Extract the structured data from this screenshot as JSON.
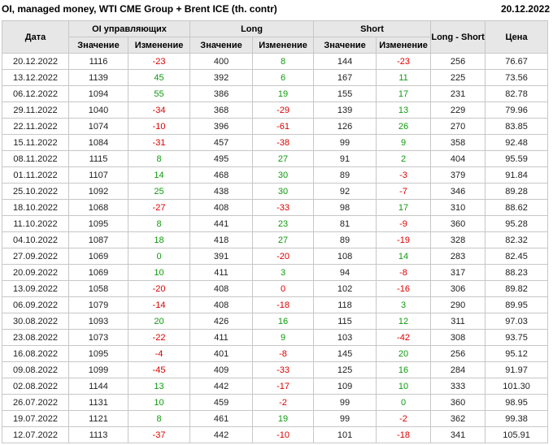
{
  "title": "OI, managed money, WTI CME Group + Brent ICE (th. contr)",
  "report_date": "20.12.2022",
  "colors": {
    "positive": "#0f9b0f",
    "negative": "#dd0000",
    "neutral": "#212121",
    "header_bg": "#e7e7e7"
  },
  "chart_data": {
    "type": "table",
    "title": "OI, managed money, WTI CME Group + Brent ICE (th. contr)",
    "header": {
      "col_date": "Дата",
      "group_oi": "OI управляющих",
      "group_long": "Long",
      "group_short": "Short",
      "col_long_short": "Long - Short",
      "col_price": "Цена",
      "sub_value": "Значение",
      "sub_change": "Изменение"
    },
    "rows": [
      {
        "date": "20.12.2022",
        "oi": "1116",
        "oi_chg": "-23",
        "long": "400",
        "long_chg": "8",
        "short": "144",
        "short_chg": "-23",
        "long_short": "256",
        "price": "76.67"
      },
      {
        "date": "13.12.2022",
        "oi": "1139",
        "oi_chg": "45",
        "long": "392",
        "long_chg": "6",
        "short": "167",
        "short_chg": "11",
        "long_short": "225",
        "price": "73.56"
      },
      {
        "date": "06.12.2022",
        "oi": "1094",
        "oi_chg": "55",
        "long": "386",
        "long_chg": "19",
        "short": "155",
        "short_chg": "17",
        "long_short": "231",
        "price": "82.78"
      },
      {
        "date": "29.11.2022",
        "oi": "1040",
        "oi_chg": "-34",
        "long": "368",
        "long_chg": "-29",
        "short": "139",
        "short_chg": "13",
        "long_short": "229",
        "price": "79.96"
      },
      {
        "date": "22.11.2022",
        "oi": "1074",
        "oi_chg": "-10",
        "long": "396",
        "long_chg": "-61",
        "short": "126",
        "short_chg": "26",
        "long_short": "270",
        "price": "83.85"
      },
      {
        "date": "15.11.2022",
        "oi": "1084",
        "oi_chg": "-31",
        "long": "457",
        "long_chg": "-38",
        "short": "99",
        "short_chg": "9",
        "long_short": "358",
        "price": "92.48"
      },
      {
        "date": "08.11.2022",
        "oi": "1115",
        "oi_chg": "8",
        "long": "495",
        "long_chg": "27",
        "short": "91",
        "short_chg": "2",
        "long_short": "404",
        "price": "95.59"
      },
      {
        "date": "01.11.2022",
        "oi": "1107",
        "oi_chg": "14",
        "long": "468",
        "long_chg": "30",
        "short": "89",
        "short_chg": "-3",
        "long_short": "379",
        "price": "91.84"
      },
      {
        "date": "25.10.2022",
        "oi": "1092",
        "oi_chg": "25",
        "long": "438",
        "long_chg": "30",
        "short": "92",
        "short_chg": "-7",
        "long_short": "346",
        "price": "89.28"
      },
      {
        "date": "18.10.2022",
        "oi": "1068",
        "oi_chg": "-27",
        "long": "408",
        "long_chg": "-33",
        "short": "98",
        "short_chg": "17",
        "long_short": "310",
        "price": "88.62"
      },
      {
        "date": "11.10.2022",
        "oi": "1095",
        "oi_chg": "8",
        "long": "441",
        "long_chg": "23",
        "short": "81",
        "short_chg": "-9",
        "long_short": "360",
        "price": "95.28"
      },
      {
        "date": "04.10.2022",
        "oi": "1087",
        "oi_chg": "18",
        "long": "418",
        "long_chg": "27",
        "short": "89",
        "short_chg": "-19",
        "long_short": "328",
        "price": "82.32"
      },
      {
        "date": "27.09.2022",
        "oi": "1069",
        "oi_chg": "0",
        "oi_chg_color": "positive",
        "long": "391",
        "long_chg": "-20",
        "short": "108",
        "short_chg": "14",
        "long_short": "283",
        "price": "82.45"
      },
      {
        "date": "20.09.2022",
        "oi": "1069",
        "oi_chg": "10",
        "long": "411",
        "long_chg": "3",
        "short": "94",
        "short_chg": "-8",
        "long_short": "317",
        "price": "88.23"
      },
      {
        "date": "13.09.2022",
        "oi": "1058",
        "oi_chg": "-20",
        "long": "408",
        "long_chg": "0",
        "long_chg_color": "negative",
        "short": "102",
        "short_chg": "-16",
        "long_short": "306",
        "price": "89.82"
      },
      {
        "date": "06.09.2022",
        "oi": "1079",
        "oi_chg": "-14",
        "long": "408",
        "long_chg": "-18",
        "short": "118",
        "short_chg": "3",
        "long_short": "290",
        "price": "89.95"
      },
      {
        "date": "30.08.2022",
        "oi": "1093",
        "oi_chg": "20",
        "long": "426",
        "long_chg": "16",
        "short": "115",
        "short_chg": "12",
        "long_short": "311",
        "price": "97.03"
      },
      {
        "date": "23.08.2022",
        "oi": "1073",
        "oi_chg": "-22",
        "long": "411",
        "long_chg": "9",
        "short": "103",
        "short_chg": "-42",
        "long_short": "308",
        "price": "93.75"
      },
      {
        "date": "16.08.2022",
        "oi": "1095",
        "oi_chg": "-4",
        "long": "401",
        "long_chg": "-8",
        "short": "145",
        "short_chg": "20",
        "long_short": "256",
        "price": "95.12"
      },
      {
        "date": "09.08.2022",
        "oi": "1099",
        "oi_chg": "-45",
        "long": "409",
        "long_chg": "-33",
        "short": "125",
        "short_chg": "16",
        "long_short": "284",
        "price": "91.97"
      },
      {
        "date": "02.08.2022",
        "oi": "1144",
        "oi_chg": "13",
        "long": "442",
        "long_chg": "-17",
        "short": "109",
        "short_chg": "10",
        "long_short": "333",
        "price": "101.30"
      },
      {
        "date": "26.07.2022",
        "oi": "1131",
        "oi_chg": "10",
        "long": "459",
        "long_chg": "-2",
        "short": "99",
        "short_chg": "0",
        "short_chg_color": "positive",
        "long_short": "360",
        "price": "98.95"
      },
      {
        "date": "19.07.2022",
        "oi": "1121",
        "oi_chg": "8",
        "long": "461",
        "long_chg": "19",
        "short": "99",
        "short_chg": "-2",
        "long_short": "362",
        "price": "99.38"
      },
      {
        "date": "12.07.2022",
        "oi": "1113",
        "oi_chg": "-37",
        "long": "442",
        "long_chg": "-10",
        "short": "101",
        "short_chg": "-18",
        "long_short": "341",
        "price": "105.91"
      }
    ]
  }
}
